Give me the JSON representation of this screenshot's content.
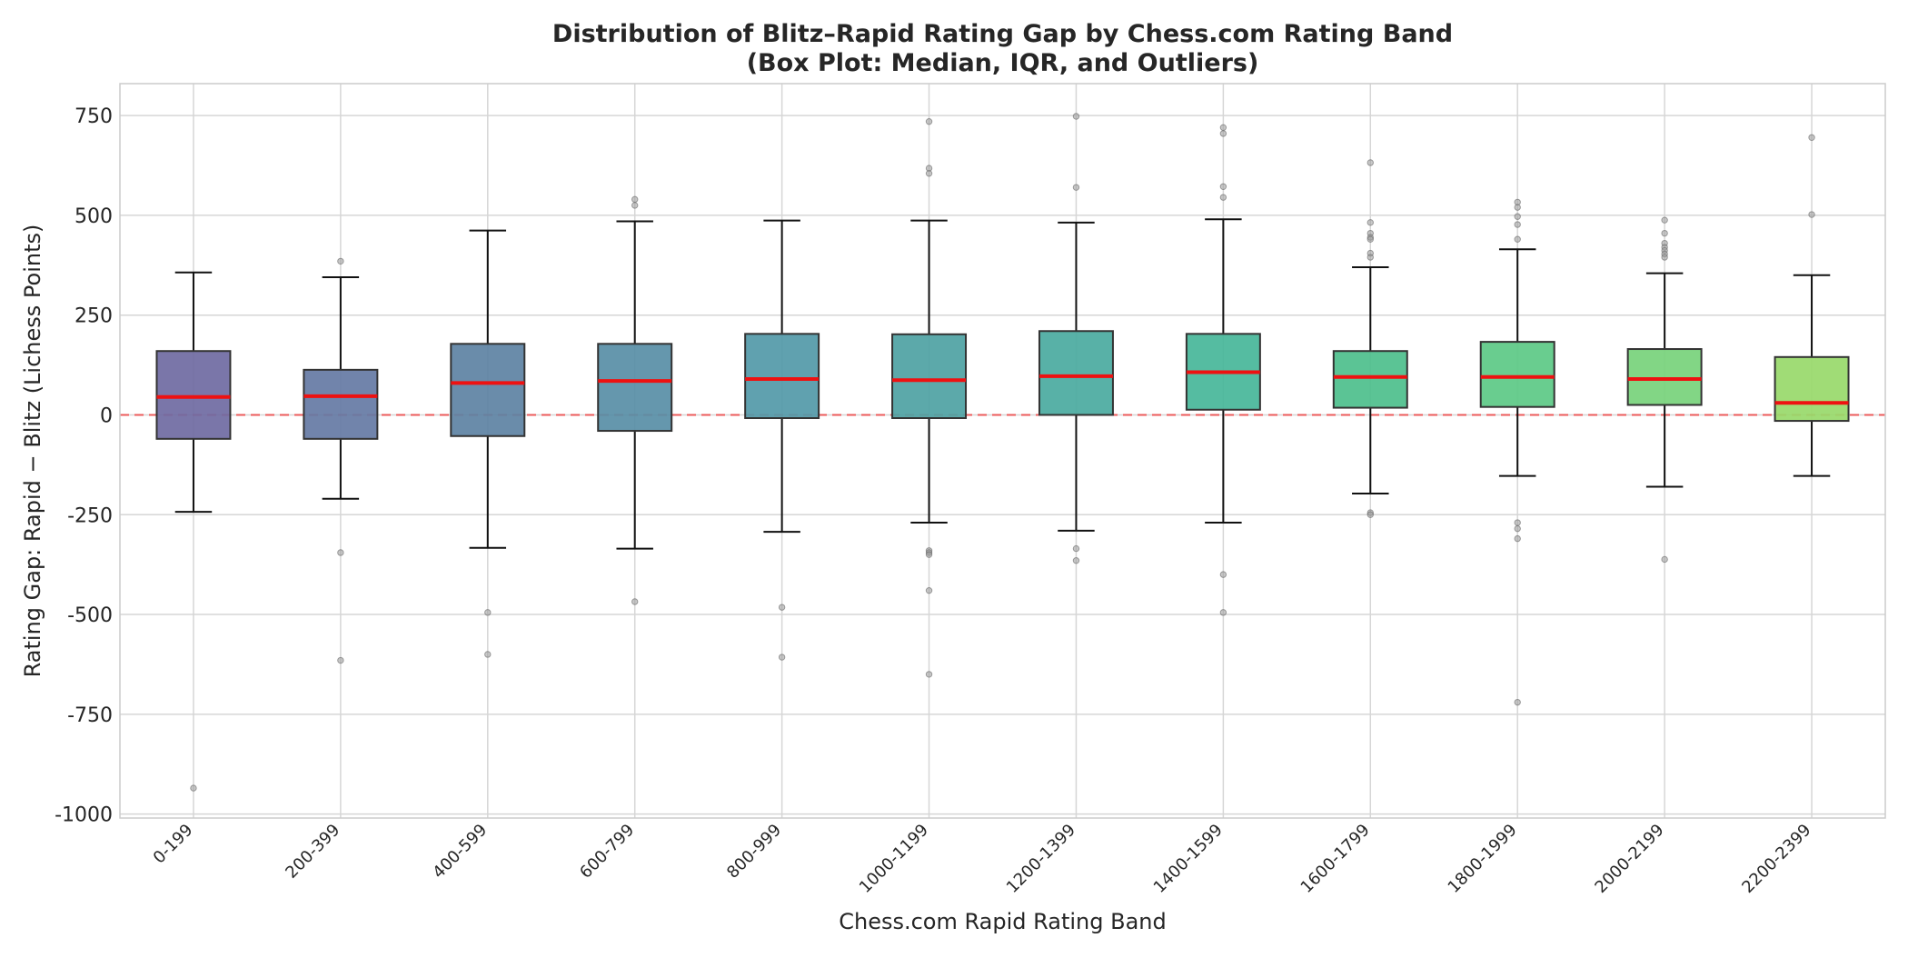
{
  "chart_data": {
    "type": "box",
    "title": "Distribution of Blitz–Rapid Rating Gap by Chess.com Rating Band",
    "subtitle": "(Box Plot: Median, IQR, and Outliers)",
    "xlabel": "Chess.com Rapid Rating Band",
    "ylabel": "Rating Gap: Rapid − Blitz (Lichess Points)",
    "ylim": [
      -1010,
      830
    ],
    "yticks": [
      750,
      500,
      250,
      0,
      -250,
      -500,
      -750,
      -1000
    ],
    "ytick_labels": [
      "750",
      "500",
      "250",
      "0",
      "-250",
      "-500",
      "-750",
      "-1000"
    ],
    "grid": true,
    "reference_line": {
      "y": 0,
      "color": "#ee4444",
      "style": "dashed"
    },
    "median_color": "#ee1111",
    "categories": [
      "0-199",
      "200-399",
      "400-599",
      "600-799",
      "800-999",
      "1000-1199",
      "1200-1399",
      "1400-1599",
      "1600-1799",
      "1800-1999",
      "2000-2199",
      "2200-2399"
    ],
    "boxes": [
      {
        "category": "0-199",
        "whisker_low": -243,
        "q1": -60,
        "median": 45,
        "q3": 160,
        "whisker_high": 357,
        "outliers": [
          -935
        ],
        "color": "#6f6aa2"
      },
      {
        "category": "200-399",
        "whisker_low": -210,
        "q1": -60,
        "median": 47,
        "q3": 113,
        "whisker_high": 345,
        "outliers": [
          385,
          -345,
          -615
        ],
        "color": "#6579a4"
      },
      {
        "category": "400-599",
        "whisker_low": -333,
        "q1": -53,
        "median": 80,
        "q3": 178,
        "whisker_high": 462,
        "outliers": [
          -495,
          -600
        ],
        "color": "#5d82a3"
      },
      {
        "category": "600-799",
        "whisker_low": -335,
        "q1": -40,
        "median": 85,
        "q3": 178,
        "whisker_high": 485,
        "outliers": [
          540,
          525,
          -468
        ],
        "color": "#588ea6"
      },
      {
        "category": "800-999",
        "whisker_low": -293,
        "q1": -8,
        "median": 90,
        "q3": 203,
        "whisker_high": 487,
        "outliers": [
          -482,
          -607
        ],
        "color": "#5399a8"
      },
      {
        "category": "1000-1199",
        "whisker_low": -270,
        "q1": -8,
        "median": 87,
        "q3": 202,
        "whisker_high": 487,
        "outliers": [
          735,
          618,
          605,
          -340,
          -345,
          -350,
          -440,
          -650
        ],
        "color": "#4ea2a3"
      },
      {
        "category": "1200-1399",
        "whisker_low": -290,
        "q1": 0,
        "median": 97,
        "q3": 210,
        "whisker_high": 482,
        "outliers": [
          748,
          570,
          -335,
          -365
        ],
        "color": "#4aaaa0"
      },
      {
        "category": "1400-1599",
        "whisker_low": -270,
        "q1": 13,
        "median": 107,
        "q3": 203,
        "whisker_high": 490,
        "outliers": [
          720,
          705,
          572,
          545,
          -400,
          -495
        ],
        "color": "#47b699"
      },
      {
        "category": "1600-1799",
        "whisker_low": -197,
        "q1": 18,
        "median": 95,
        "q3": 160,
        "whisker_high": 370,
        "outliers": [
          632,
          482,
          455,
          445,
          440,
          405,
          395,
          -245,
          -250
        ],
        "color": "#4dbf8c"
      },
      {
        "category": "1800-1999",
        "whisker_low": -153,
        "q1": 20,
        "median": 95,
        "q3": 183,
        "whisker_high": 415,
        "outliers": [
          533,
          520,
          497,
          477,
          440,
          -270,
          -285,
          -310,
          -720
        ],
        "color": "#5cc985"
      },
      {
        "category": "2000-2199",
        "whisker_low": -180,
        "q1": 25,
        "median": 90,
        "q3": 165,
        "whisker_high": 355,
        "outliers": [
          488,
          455,
          430,
          420,
          412,
          403,
          395,
          -362
        ],
        "color": "#77d27b"
      },
      {
        "category": "2200-2399",
        "whisker_low": -153,
        "q1": -15,
        "median": 30,
        "q3": 145,
        "whisker_high": 350,
        "outliers": [
          695,
          502
        ],
        "color": "#98d96a"
      }
    ]
  }
}
